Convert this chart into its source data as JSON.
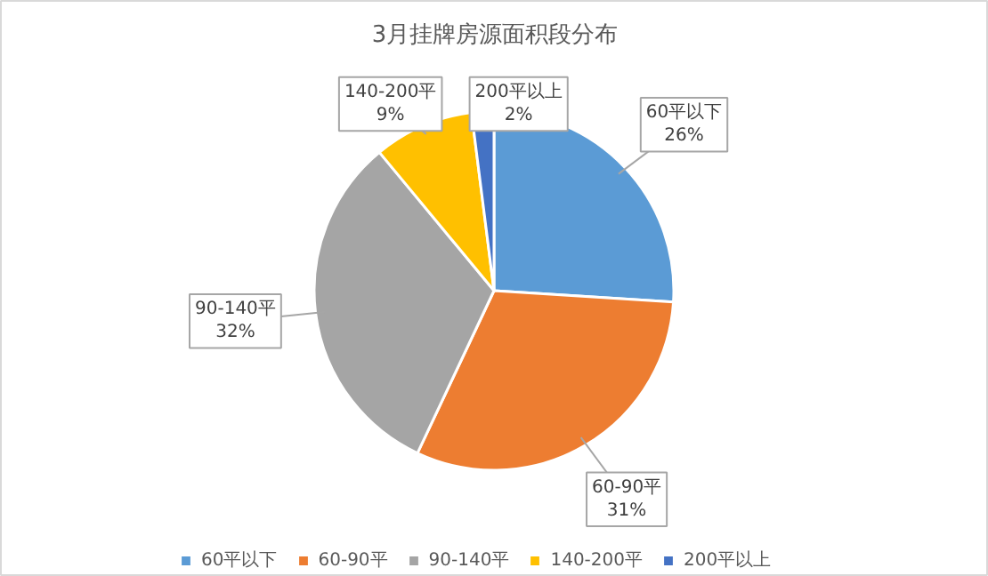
{
  "chart_data": {
    "type": "pie",
    "title": "3月挂牌房源面积段分布",
    "categories": [
      "60平以下",
      "60-90平",
      "90-140平",
      "140-200平",
      "200平以上"
    ],
    "values": [
      26,
      31,
      32,
      9,
      2
    ],
    "value_labels": [
      "26%",
      "31%",
      "32%",
      "9%",
      "2%"
    ],
    "colors": [
      "#5b9bd5",
      "#ed7d31",
      "#a5a5a5",
      "#ffc000",
      "#4472c4"
    ],
    "legend": "bottom"
  }
}
